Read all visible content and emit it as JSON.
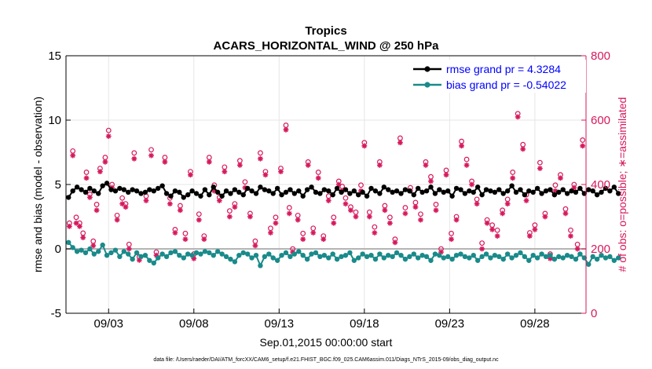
{
  "chart_data": {
    "type": "line",
    "title": "Tropics",
    "subtitle": "ACARS_HORIZONTAL_WIND @ 250 hPa",
    "xlabel": "Sep.01,2015 00:00:00 start",
    "ylabel_left": "rmse and bias (model - observation)",
    "ylabel_right": "# of obs: o=possible; ∗=assimilated",
    "ylim_left": [
      -5,
      15
    ],
    "yticks_left": [
      "-5",
      "0",
      "5",
      "10",
      "15"
    ],
    "ylim_right": [
      0,
      800
    ],
    "yticks_right": [
      "0",
      "200",
      "400",
      "600",
      "800"
    ],
    "xlim": [
      0.5,
      31.0
    ],
    "x_ticks": [
      {
        "label": "09/03",
        "x": 3
      },
      {
        "label": "09/08",
        "x": 8
      },
      {
        "label": "09/13",
        "x": 13
      },
      {
        "label": "09/18",
        "x": 18
      },
      {
        "label": "09/23",
        "x": 23
      },
      {
        "label": "09/28",
        "x": 28
      }
    ],
    "series": [
      {
        "name": "rmse",
        "legend": "rmse grand pr = 4.3284",
        "color": "#000000",
        "axis": "left"
      },
      {
        "name": "bias",
        "legend": "bias grand pr = -0.54022",
        "color": "#1a8a8a",
        "axis": "left"
      },
      {
        "name": "obs_possible",
        "marker": "o",
        "color": "#d6195c",
        "axis": "right"
      },
      {
        "name": "obs_assimilated",
        "marker": "*",
        "color": "#d6195c",
        "axis": "right"
      }
    ],
    "t_start": 0.65,
    "t_step": 0.25,
    "rmse": [
      4.0,
      4.5,
      4.8,
      4.6,
      4.4,
      4.7,
      4.5,
      4.3,
      4.9,
      5.1,
      4.6,
      4.5,
      4.7,
      4.6,
      4.4,
      4.6,
      4.5,
      4.3,
      4.4,
      4.6,
      4.5,
      4.7,
      4.9,
      4.3,
      4.1,
      4.5,
      4.4,
      4.0,
      4.2,
      4.5,
      4.3,
      4.1,
      4.6,
      4.2,
      4.8,
      4.4,
      4.1,
      4.5,
      4.3,
      4.6,
      4.4,
      4.2,
      4.7,
      4.5,
      4.3,
      4.8,
      4.6,
      4.5,
      4.3,
      4.7,
      4.2,
      4.4,
      4.6,
      4.3,
      4.5,
      4.1,
      4.6,
      4.8,
      4.4,
      4.3,
      4.6,
      4.5,
      4.2,
      4.7,
      4.4,
      4.6,
      4.3,
      4.5,
      4.2,
      4.4,
      4.1,
      4.7,
      4.5,
      4.3,
      4.8,
      4.6,
      4.4,
      4.5,
      4.3,
      4.6,
      4.5,
      4.2,
      4.7,
      4.4,
      4.5,
      4.8,
      4.3,
      4.6,
      4.4,
      4.5,
      4.1,
      4.7,
      4.6,
      4.3,
      4.5,
      4.4,
      4.8,
      4.2,
      4.6,
      4.5,
      4.4,
      4.6,
      4.3,
      4.5,
      4.9,
      4.4,
      4.6,
      4.2,
      4.5,
      4.4,
      4.7,
      4.3,
      4.5,
      4.6,
      4.2,
      4.4,
      4.6,
      4.3,
      4.5,
      4.4,
      4.7,
      4.3,
      4.6,
      4.5,
      4.2,
      4.4,
      4.7,
      4.5,
      4.8,
      4.3
    ],
    "bias": [
      0.5,
      0.1,
      -0.2,
      -0.1,
      -0.3,
      0.0,
      -0.4,
      -0.2,
      0.3,
      -0.5,
      -0.3,
      -0.1,
      -0.6,
      -0.2,
      -0.4,
      -0.8,
      -0.3,
      -0.6,
      -0.5,
      -0.9,
      -1.1,
      -0.7,
      -0.4,
      -0.6,
      -0.3,
      -0.2,
      -0.5,
      -0.7,
      -0.4,
      -0.5,
      -0.3,
      -0.4,
      -0.2,
      -0.3,
      -0.5,
      -0.2,
      -0.4,
      -0.6,
      -0.8,
      -1.0,
      -0.5,
      -0.3,
      -0.4,
      -0.7,
      -0.5,
      -1.3,
      -0.6,
      -0.4,
      -0.7,
      -0.9,
      -0.5,
      -0.3,
      -0.6,
      -0.4,
      -0.2,
      -0.5,
      -0.8,
      -0.4,
      -0.3,
      -0.6,
      -0.5,
      -0.7,
      -0.4,
      -0.8,
      -0.6,
      -0.5,
      -0.3,
      -0.9,
      -0.7,
      -0.4,
      -0.6,
      -0.5,
      -0.8,
      -0.4,
      -0.7,
      -0.5,
      -0.6,
      -0.3,
      -0.5,
      -0.8,
      -0.6,
      -0.4,
      -0.7,
      -0.5,
      -0.6,
      -0.9,
      -0.4,
      -0.5,
      -0.7,
      -0.6,
      -0.8,
      -0.5,
      -0.4,
      -0.6,
      -0.7,
      -0.5,
      -0.9,
      -0.6,
      -0.4,
      -0.7,
      -0.5,
      -0.6,
      -0.8,
      -0.4,
      -0.7,
      -0.5,
      -0.3,
      -0.6,
      -0.9,
      -0.5,
      -0.7,
      -0.4,
      -0.6,
      -0.5,
      -0.8,
      -0.6,
      -0.7,
      -0.5,
      -0.6,
      -0.8,
      -0.4,
      -0.7,
      -1.2,
      -0.6,
      -0.8,
      -0.5,
      -0.7,
      -0.6,
      -0.9,
      -0.7
    ],
    "obs": [
      [
        0.7,
        270
      ],
      [
        0.9,
        490
      ],
      [
        1.1,
        280
      ],
      [
        1.3,
        270
      ],
      [
        1.5,
        235
      ],
      [
        1.7,
        420
      ],
      [
        1.9,
        360
      ],
      [
        2.1,
        210
      ],
      [
        2.3,
        320
      ],
      [
        2.5,
        440
      ],
      [
        2.8,
        470
      ],
      [
        3.0,
        550
      ],
      [
        3.2,
        390
      ],
      [
        3.5,
        290
      ],
      [
        3.8,
        340
      ],
      [
        4.0,
        330
      ],
      [
        4.2,
        200
      ],
      [
        4.5,
        480
      ],
      [
        4.8,
        165
      ],
      [
        5.2,
        350
      ],
      [
        5.5,
        490
      ],
      [
        5.8,
        180
      ],
      [
        6.3,
        470
      ],
      [
        6.6,
        340
      ],
      [
        6.9,
        250
      ],
      [
        7.2,
        320
      ],
      [
        7.5,
        230
      ],
      [
        7.8,
        430
      ],
      [
        8.0,
        170
      ],
      [
        8.3,
        290
      ],
      [
        8.6,
        230
      ],
      [
        8.9,
        470
      ],
      [
        9.2,
        380
      ],
      [
        9.5,
        350
      ],
      [
        9.8,
        440
      ],
      [
        10.1,
        300
      ],
      [
        10.4,
        330
      ],
      [
        10.7,
        460
      ],
      [
        11.0,
        390
      ],
      [
        11.3,
        300
      ],
      [
        11.6,
        210
      ],
      [
        11.9,
        480
      ],
      [
        12.2,
        430
      ],
      [
        12.5,
        250
      ],
      [
        12.8,
        280
      ],
      [
        13.1,
        440
      ],
      [
        13.4,
        570
      ],
      [
        13.6,
        310
      ],
      [
        13.8,
        190
      ],
      [
        14.1,
        290
      ],
      [
        14.4,
        230
      ],
      [
        14.7,
        460
      ],
      [
        15.0,
        250
      ],
      [
        15.3,
        420
      ],
      [
        15.6,
        230
      ],
      [
        15.9,
        350
      ],
      [
        16.2,
        280
      ],
      [
        16.5,
        400
      ],
      [
        16.7,
        380
      ],
      [
        16.9,
        340
      ],
      [
        17.2,
        320
      ],
      [
        17.5,
        300
      ],
      [
        17.8,
        380
      ],
      [
        18.0,
        520
      ],
      [
        18.3,
        300
      ],
      [
        18.6,
        250
      ],
      [
        18.9,
        460
      ],
      [
        19.2,
        320
      ],
      [
        19.5,
        280
      ],
      [
        19.8,
        220
      ],
      [
        20.1,
        530
      ],
      [
        20.4,
        310
      ],
      [
        20.7,
        380
      ],
      [
        21.0,
        330
      ],
      [
        21.3,
        290
      ],
      [
        21.6,
        460
      ],
      [
        21.9,
        410
      ],
      [
        22.2,
        320
      ],
      [
        22.5,
        190
      ],
      [
        22.8,
        430
      ],
      [
        23.1,
        230
      ],
      [
        23.4,
        290
      ],
      [
        23.7,
        520
      ],
      [
        24.0,
        460
      ],
      [
        24.3,
        400
      ],
      [
        24.6,
        340
      ],
      [
        24.9,
        200
      ],
      [
        25.2,
        280
      ],
      [
        25.5,
        260
      ],
      [
        25.8,
        240
      ],
      [
        26.1,
        310
      ],
      [
        26.4,
        340
      ],
      [
        26.7,
        420
      ],
      [
        27.0,
        610
      ],
      [
        27.3,
        510
      ],
      [
        27.5,
        350
      ],
      [
        27.7,
        240
      ],
      [
        28.0,
        260
      ],
      [
        28.3,
        450
      ],
      [
        28.6,
        300
      ],
      [
        28.9,
        170
      ],
      [
        29.2,
        380
      ],
      [
        29.5,
        420
      ],
      [
        29.8,
        310
      ],
      [
        30.1,
        240
      ],
      [
        30.3,
        390
      ],
      [
        30.5,
        200
      ],
      [
        30.8,
        520
      ]
    ],
    "footer": "data file: /Users/raeder/DAI/ATM_forcXX/CAM6_setup/f.e21.FHIST_BGC.f09_025.CAM6assim.011/Diags_NTrS_2015-09/obs_diag_output.nc"
  }
}
